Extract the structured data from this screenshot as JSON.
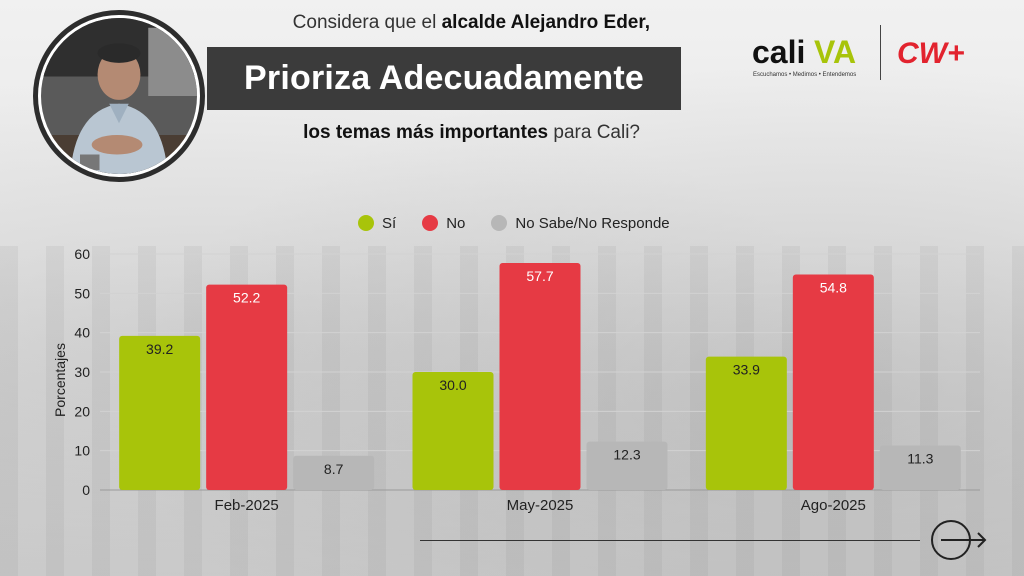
{
  "header": {
    "line1_prefix": "Considera que el ",
    "line1_bold": "alcalde Alejandro Eder,",
    "banner": "Prioriza Adecuadamente",
    "line3_bold": "los temas más importantes",
    "line3_suffix": " para Cali?"
  },
  "logos": {
    "cali_word": "cali",
    "cali_suffix": "VA",
    "cali_tagline": "Escuchamos • Medimos • Entendemos",
    "cw": "CW+"
  },
  "colors": {
    "si": "#a8c40a",
    "no": "#e63a44",
    "ns": "#b7b7b7",
    "banner": "#3b3b3b",
    "cw_red": "#e2232e"
  },
  "chart_data": {
    "type": "bar",
    "categories": [
      "Feb-2025",
      "May-2025",
      "Ago-2025"
    ],
    "series": [
      {
        "name": "Sí",
        "values": [
          39.2,
          30.0,
          33.9
        ]
      },
      {
        "name": "No",
        "values": [
          52.2,
          57.7,
          54.8
        ]
      },
      {
        "name": "No Sabe/No Responde",
        "values": [
          8.7,
          12.3,
          11.3
        ]
      }
    ],
    "value_labels": [
      [
        "39.2",
        "30.0",
        "33.9"
      ],
      [
        "52.2",
        "57.7",
        "54.8"
      ],
      [
        "8.7",
        "12.3",
        "11.3"
      ]
    ],
    "ylabel": "Porcentajes",
    "ylim": [
      0,
      60
    ],
    "yticks": [
      0,
      10,
      20,
      30,
      40,
      50,
      60
    ],
    "grid": true,
    "legend_position": "top-center"
  },
  "icons": {
    "next": "arrow-right-circle-icon"
  }
}
